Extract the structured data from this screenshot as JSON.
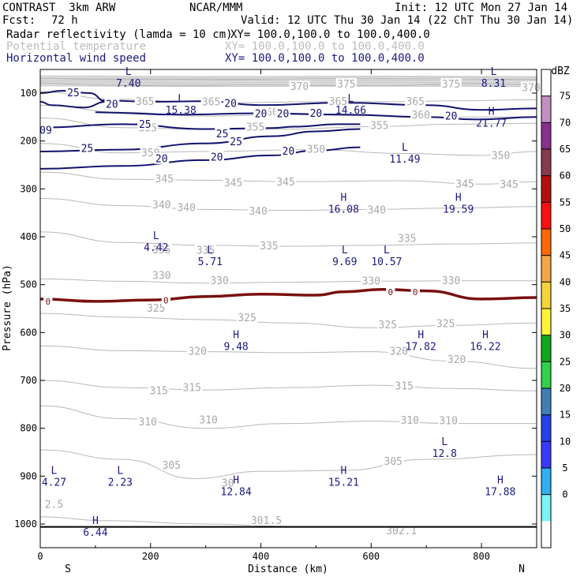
{
  "header": {
    "model": "CONTRAST  3km ARW",
    "center": "NCAR/MMM",
    "init": "Init: 12 UTC Mon 27 Jan 14",
    "fcst_label": "Fcst:",
    "fcst_value": "72 h",
    "valid": "Valid: 12 UTC Thu 30 Jan 14 (22 ChT Thu 30 Jan 14)",
    "fields": [
      {
        "name": "Radar reflectivity (lamda = 10 cm)",
        "xy": "XY= 100.0,100.0 to 100.0,400.0",
        "color": "#000000"
      },
      {
        "name": "Potential temperature",
        "xy": "XY= 100.0,100.0 to 100.0,400.0",
        "color": "#bdbdbd"
      },
      {
        "name": "Horizontal wind speed",
        "xy": "XY= 100.0,100.0 to 100.0,400.0",
        "color": "#1a1a80"
      }
    ]
  },
  "chart_data": {
    "type": "cross-section",
    "xlabel": "Distance (km)",
    "ylabel": "Pressure (hPa)",
    "xlim": [
      0,
      900
    ],
    "ylim": [
      1045,
      63
    ],
    "x_ticks": [
      0,
      200,
      400,
      600,
      800
    ],
    "y_ticks": [
      100,
      200,
      300,
      400,
      500,
      600,
      700,
      800,
      900,
      1000
    ],
    "end_labels": {
      "left": "S",
      "right": "N"
    },
    "theta_contours": [
      {
        "level": "375",
        "points": [
          [
            0,
            69
          ],
          [
            100,
            71
          ],
          [
            300,
            72
          ],
          [
            500,
            70
          ],
          [
            700,
            70
          ],
          [
            900,
            72
          ]
        ],
        "labels": [
          [
            555,
            82
          ],
          [
            745,
            82
          ]
        ]
      },
      {
        "level": "370",
        "points": [
          [
            0,
            79
          ],
          [
            100,
            83
          ],
          [
            250,
            85
          ],
          [
            400,
            83
          ],
          [
            600,
            85
          ],
          [
            800,
            80
          ],
          [
            900,
            82
          ]
        ],
        "labels": [
          [
            470,
            87
          ],
          [
            890,
            89
          ]
        ]
      },
      {
        "level": "365",
        "points": [
          [
            0,
            97
          ],
          [
            130,
            112
          ],
          [
            250,
            117
          ],
          [
            350,
            120
          ],
          [
            500,
            118
          ],
          [
            650,
            118
          ],
          [
            750,
            116
          ],
          [
            900,
            114
          ]
        ],
        "labels": [
          [
            190,
            118
          ],
          [
            310,
            119
          ],
          [
            540,
            118
          ],
          [
            680,
            118
          ]
        ]
      },
      {
        "level": "360",
        "points": [
          [
            0,
            125
          ],
          [
            150,
            140
          ],
          [
            300,
            148
          ],
          [
            450,
            145
          ],
          [
            600,
            147
          ],
          [
            750,
            150
          ],
          [
            900,
            150
          ]
        ],
        "labels": [
          [
            415,
            140
          ],
          [
            690,
            146
          ]
        ]
      },
      {
        "level": "355",
        "points": [
          [
            0,
            152
          ],
          [
            150,
            172
          ],
          [
            300,
            176
          ],
          [
            450,
            175
          ],
          [
            600,
            170
          ],
          [
            750,
            165
          ],
          [
            900,
            163
          ]
        ],
        "labels": [
          [
            195,
            173
          ],
          [
            390,
            172
          ],
          [
            615,
            168
          ]
        ]
      },
      {
        "level": "350",
        "points": [
          [
            0,
            205
          ],
          [
            150,
            225
          ],
          [
            300,
            222
          ],
          [
            500,
            218
          ],
          [
            650,
            226
          ],
          [
            800,
            230
          ],
          [
            900,
            222
          ]
        ],
        "labels": [
          [
            200,
            225
          ],
          [
            500,
            218
          ],
          [
            835,
            231
          ]
        ]
      },
      {
        "level": "345",
        "points": [
          [
            0,
            265
          ],
          [
            150,
            280
          ],
          [
            300,
            282
          ],
          [
            450,
            285
          ],
          [
            650,
            283
          ],
          [
            800,
            290
          ],
          [
            900,
            285
          ]
        ],
        "labels": [
          [
            225,
            280
          ],
          [
            350,
            288
          ],
          [
            445,
            286
          ],
          [
            770,
            290
          ],
          [
            850,
            291
          ]
        ]
      },
      {
        "level": "340",
        "points": [
          [
            0,
            320
          ],
          [
            150,
            335
          ],
          [
            300,
            343
          ],
          [
            450,
            345
          ],
          [
            600,
            343
          ],
          [
            750,
            340
          ],
          [
            900,
            337
          ]
        ],
        "labels": [
          [
            220,
            334
          ],
          [
            265,
            340
          ],
          [
            395,
            347
          ],
          [
            610,
            345
          ]
        ]
      },
      {
        "level": "335",
        "points": [
          [
            0,
            390
          ],
          [
            150,
            412
          ],
          [
            300,
            418
          ],
          [
            450,
            420
          ],
          [
            600,
            418
          ],
          [
            750,
            415
          ],
          [
            900,
            413
          ]
        ],
        "labels": [
          [
            220,
            428
          ],
          [
            300,
            429
          ],
          [
            415,
            420
          ],
          [
            665,
            404
          ]
        ]
      },
      {
        "level": "330",
        "points": [
          [
            0,
            488
          ],
          [
            150,
            493
          ],
          [
            300,
            497
          ],
          [
            450,
            495
          ],
          [
            600,
            493
          ],
          [
            750,
            492
          ],
          [
            900,
            492
          ]
        ],
        "labels": [
          [
            220,
            482
          ],
          [
            325,
            492
          ],
          [
            600,
            493
          ],
          [
            745,
            492
          ]
        ]
      },
      {
        "level": "325",
        "points": [
          [
            0,
            560
          ],
          [
            150,
            568
          ],
          [
            300,
            573
          ],
          [
            450,
            580
          ],
          [
            600,
            590
          ],
          [
            750,
            585
          ],
          [
            900,
            580
          ]
        ],
        "labels": [
          [
            210,
            550
          ],
          [
            375,
            570
          ],
          [
            630,
            585
          ],
          [
            735,
            582
          ]
        ]
      },
      {
        "level": "320",
        "points": [
          [
            0,
            628
          ],
          [
            150,
            638
          ],
          [
            300,
            640
          ],
          [
            450,
            642
          ],
          [
            600,
            640
          ],
          [
            750,
            660
          ],
          [
            900,
            675
          ]
        ],
        "labels": [
          [
            285,
            640
          ],
          [
            650,
            640
          ],
          [
            755,
            657
          ]
        ]
      },
      {
        "level": "315",
        "points": [
          [
            0,
            700
          ],
          [
            150,
            715
          ],
          [
            300,
            720
          ],
          [
            450,
            715
          ],
          [
            600,
            710
          ],
          [
            750,
            717
          ],
          [
            900,
            722
          ]
        ],
        "labels": [
          [
            215,
            722
          ],
          [
            275,
            716
          ],
          [
            660,
            712
          ]
        ]
      },
      {
        "level": "310",
        "points": [
          [
            0,
            753
          ],
          [
            150,
            780
          ],
          [
            300,
            800
          ],
          [
            450,
            790
          ],
          [
            600,
            785
          ],
          [
            750,
            790
          ],
          [
            900,
            790
          ]
        ],
        "labels": [
          [
            195,
            787
          ],
          [
            305,
            783
          ],
          [
            670,
            784
          ],
          [
            740,
            785
          ]
        ]
      },
      {
        "level": "305",
        "points": [
          [
            0,
            845
          ],
          [
            150,
            865
          ],
          [
            280,
            905
          ],
          [
            400,
            890
          ],
          [
            550,
            888
          ],
          [
            700,
            865
          ],
          [
            900,
            855
          ]
        ],
        "labels": [
          [
            238,
            878
          ],
          [
            640,
            870
          ]
        ]
      },
      {
        "level": "301.5",
        "points": [
          [
            0,
            985
          ],
          [
            120,
            993
          ],
          [
            300,
            1000
          ],
          [
            450,
            1005
          ]
        ],
        "labels": [
          [
            410,
            993
          ]
        ]
      }
    ],
    "wind_contours": [
      {
        "level": "25",
        "points": [
          [
            0,
            100
          ],
          [
            40,
            95
          ],
          [
            90,
            100
          ],
          [
            120,
            118
          ],
          [
            80,
            130
          ],
          [
            20,
            125
          ],
          [
            0,
            118
          ]
        ],
        "labels": [
          [
            60,
            100
          ]
        ]
      },
      {
        "level": "20",
        "points": [
          [
            110,
            115
          ],
          [
            200,
            118
          ],
          [
            300,
            117
          ],
          [
            400,
            125
          ],
          [
            550,
            120
          ],
          [
            700,
            125
          ],
          [
            800,
            135
          ],
          [
            900,
            132
          ]
        ],
        "labels": [
          [
            130,
            124
          ],
          [
            345,
            122
          ],
          [
            500,
            143
          ]
        ]
      },
      {
        "level": "20",
        "points": [
          [
            100,
            140
          ],
          [
            250,
            145
          ],
          [
            400,
            142
          ],
          [
            550,
            145
          ],
          [
            700,
            150
          ],
          [
            790,
            155
          ],
          [
            900,
            150
          ]
        ],
        "labels": [
          [
            400,
            144
          ],
          [
            440,
            144
          ],
          [
            745,
            149
          ]
        ]
      },
      {
        "level": "25",
        "points": [
          [
            0,
            172
          ],
          [
            150,
            165
          ],
          [
            300,
            175
          ],
          [
            420,
            173
          ],
          [
            460,
            170
          ],
          [
            540,
            165
          ],
          [
            580,
            165
          ]
        ],
        "labels": [
          [
            190,
            166
          ],
          [
            330,
            186
          ]
        ]
      },
      {
        "level": "25",
        "points": [
          [
            0,
            222
          ],
          [
            150,
            218
          ],
          [
            300,
            205
          ],
          [
            420,
            190
          ],
          [
            500,
            180
          ],
          [
            580,
            175
          ]
        ],
        "labels": [
          [
            85,
            216
          ],
          [
            355,
            202
          ]
        ]
      },
      {
        "level": "20",
        "points": [
          [
            0,
            258
          ],
          [
            150,
            252
          ],
          [
            300,
            240
          ],
          [
            420,
            230
          ],
          [
            500,
            220
          ],
          [
            580,
            213
          ]
        ],
        "labels": [
          [
            220,
            238
          ],
          [
            320,
            234
          ],
          [
            450,
            222
          ]
        ]
      },
      {
        "level": "09",
        "points": [],
        "labels": [
          [
            10,
            178
          ]
        ]
      }
    ],
    "reflectivity_contour": {
      "level": "0",
      "points": [
        [
          0,
          530
        ],
        [
          100,
          535
        ],
        [
          200,
          532
        ],
        [
          300,
          525
        ],
        [
          400,
          520
        ],
        [
          500,
          522
        ],
        [
          550,
          515
        ],
        [
          620,
          510
        ],
        [
          700,
          513
        ],
        [
          800,
          530
        ],
        [
          900,
          527
        ]
      ],
      "labels": [
        [
          14,
          535
        ],
        [
          228,
          533
        ],
        [
          635,
          515
        ],
        [
          680,
          515
        ]
      ]
    },
    "extrema": [
      {
        "type": "L",
        "value": "7.40",
        "x": 160,
        "p": 62
      },
      {
        "type": "L",
        "value": "8.31",
        "x": 822,
        "p": 62
      },
      {
        "type": "L",
        "value": "15.38",
        "x": 255,
        "p": 118
      },
      {
        "type": "L",
        "value": "14.66",
        "x": 563,
        "p": 118
      },
      {
        "type": "H",
        "value": "21.77",
        "x": 818,
        "p": 145
      },
      {
        "type": "L",
        "value": "11.49",
        "x": 661,
        "p": 220
      },
      {
        "type": "H",
        "value": "16.08",
        "x": 550,
        "p": 325
      },
      {
        "type": "H",
        "value": "19.59",
        "x": 758,
        "p": 325
      },
      {
        "type": "L",
        "value": "4.42",
        "x": 210,
        "p": 405
      },
      {
        "type": "L",
        "value": "5.71",
        "x": 308,
        "p": 435
      },
      {
        "type": "L",
        "value": "9.69",
        "x": 552,
        "p": 435
      },
      {
        "type": "L",
        "value": "10.57",
        "x": 628,
        "p": 435
      },
      {
        "type": "H",
        "value": "9.48",
        "x": 355,
        "p": 612
      },
      {
        "type": "H",
        "value": "17.82",
        "x": 690,
        "p": 612
      },
      {
        "type": "H",
        "value": "16.22",
        "x": 807,
        "p": 612
      },
      {
        "type": "L",
        "value": "12.8",
        "x": 733,
        "p": 835
      },
      {
        "type": "L",
        "value": "4.27",
        "x": 25,
        "p": 895
      },
      {
        "type": "L",
        "value": "2.23",
        "x": 145,
        "p": 895
      },
      {
        "type": "H",
        "value": "15.21",
        "x": 550,
        "p": 895
      },
      {
        "type": "H",
        "value": "12.84",
        "x": 355,
        "p": 915
      },
      {
        "type": "H",
        "value": "17.88",
        "x": 834,
        "p": 915
      },
      {
        "type": "H",
        "value": "6.44",
        "x": 100,
        "p": 1000
      }
    ],
    "gray_fragments": [
      {
        "text": "2.5",
        "x": 25,
        "p": 960
      },
      {
        "text": "30",
        "x": 340,
        "p": 915
      },
      {
        "text": "302.1",
        "x": 655,
        "p": 1015
      }
    ],
    "colorbar": {
      "unit": "dBZ",
      "levels": [
        "75",
        "70",
        "65",
        "60",
        "55",
        "50",
        "45",
        "40",
        "35",
        "30",
        "25",
        "20",
        "15",
        "10",
        "5",
        "0"
      ],
      "colors": [
        "#ffffff",
        "#c090c0",
        "#8a2f8c",
        "#8a3a4e",
        "#b40f0f",
        "#ff1010",
        "#ff6a00",
        "#f4a64a",
        "#f4d43a",
        "#fff23a",
        "#12a51e",
        "#31d14a",
        "#3f7fb6",
        "#2640e6",
        "#3a3aff",
        "#2fb0f0",
        "#7af4f4",
        "#ffffff"
      ]
    }
  }
}
